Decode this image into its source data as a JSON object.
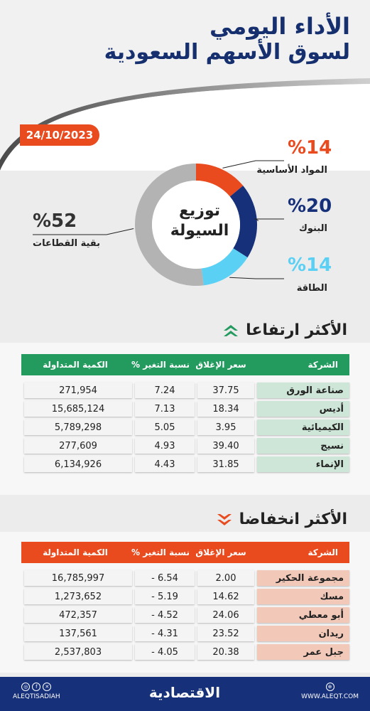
{
  "header": {
    "title_line1": "الأداء اليومي",
    "title_line2": "لسوق الأسهم السعودية",
    "date": "24/10/2023"
  },
  "liquidity": {
    "title_line1": "توزيع",
    "title_line2": "السيولة",
    "segments": [
      {
        "label": "المواد الأساسية",
        "pct_text": "%14",
        "value": 14,
        "color": "#e94b1f"
      },
      {
        "label": "البنوك",
        "pct_text": "%20",
        "value": 20,
        "color": "#16307a"
      },
      {
        "label": "الطاقة",
        "pct_text": "%14",
        "value": 14,
        "color": "#5ad0f5"
      },
      {
        "label": "بقية القطاعات",
        "pct_text": "%52",
        "value": 52,
        "color": "#b3b3b3"
      }
    ]
  },
  "gainers": {
    "title": "الأكثر ارتفاعا",
    "headers": {
      "name": "الشركة",
      "close": "سعر الإغلاق",
      "change": "نسبة التغير %",
      "volume": "الكمية المتداولة"
    },
    "rows": [
      {
        "name": "صناعة الورق",
        "close": "37.75",
        "change": "7.24",
        "volume": "271,954"
      },
      {
        "name": "أديس",
        "close": "18.34",
        "change": "7.13",
        "volume": "15,685,124"
      },
      {
        "name": "الكيميائية",
        "close": "3.95",
        "change": "5.05",
        "volume": "5,789,298"
      },
      {
        "name": "نسيج",
        "close": "39.40",
        "change": "4.93",
        "volume": "277,609"
      },
      {
        "name": "الإنماء",
        "close": "31.85",
        "change": "4.43",
        "volume": "6,134,926"
      }
    ]
  },
  "losers": {
    "title": "الأكثر انخفاضا",
    "headers": {
      "name": "الشركة",
      "close": "سعر الإغلاق",
      "change": "نسبة التغير %",
      "volume": "الكمية المتداولة"
    },
    "rows": [
      {
        "name": "مجموعة الحكير",
        "close": "2.00",
        "change": "6.54 -",
        "volume": "16,785,997"
      },
      {
        "name": "مسك",
        "close": "14.62",
        "change": "5.19 -",
        "volume": "1,273,652"
      },
      {
        "name": "أبو معطي",
        "close": "24.06",
        "change": "4.52 -",
        "volume": "472,357"
      },
      {
        "name": "ريدان",
        "close": "23.52",
        "change": "4.31 -",
        "volume": "137,561"
      },
      {
        "name": "جبل عمر",
        "close": "20.38",
        "change": "4.05 -",
        "volume": "2,537,803"
      }
    ]
  },
  "footer": {
    "handle": "ALEQTISADIAH",
    "logo": "الاقتصادية",
    "website": "WWW.ALEQT.COM"
  },
  "chart_data": {
    "type": "pie",
    "categories": [
      "المواد الأساسية",
      "البنوك",
      "الطاقة",
      "بقية القطاعات"
    ],
    "values": [
      14,
      20,
      14,
      52
    ]
  }
}
